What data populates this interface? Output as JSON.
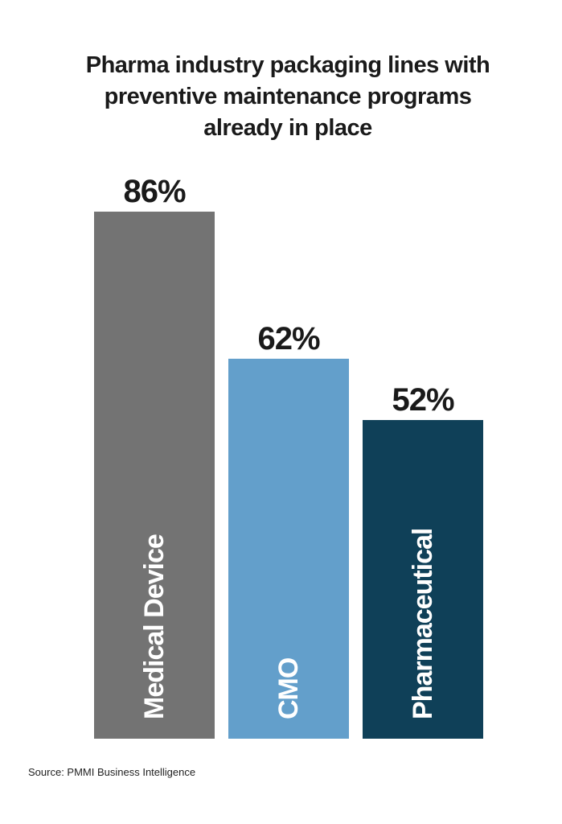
{
  "chart_data": {
    "type": "bar",
    "title": "Pharma industry packaging lines with preventive maintenance programs already in place",
    "categories": [
      "Medical Device",
      "CMO",
      "Pharmaceutical"
    ],
    "values": [
      86,
      62,
      52
    ],
    "value_labels": [
      "86%",
      "62%",
      "52%"
    ],
    "colors": [
      "#737373",
      "#639fcb",
      "#0f4058"
    ],
    "source": "Source: PMMI Business Intelligence"
  }
}
